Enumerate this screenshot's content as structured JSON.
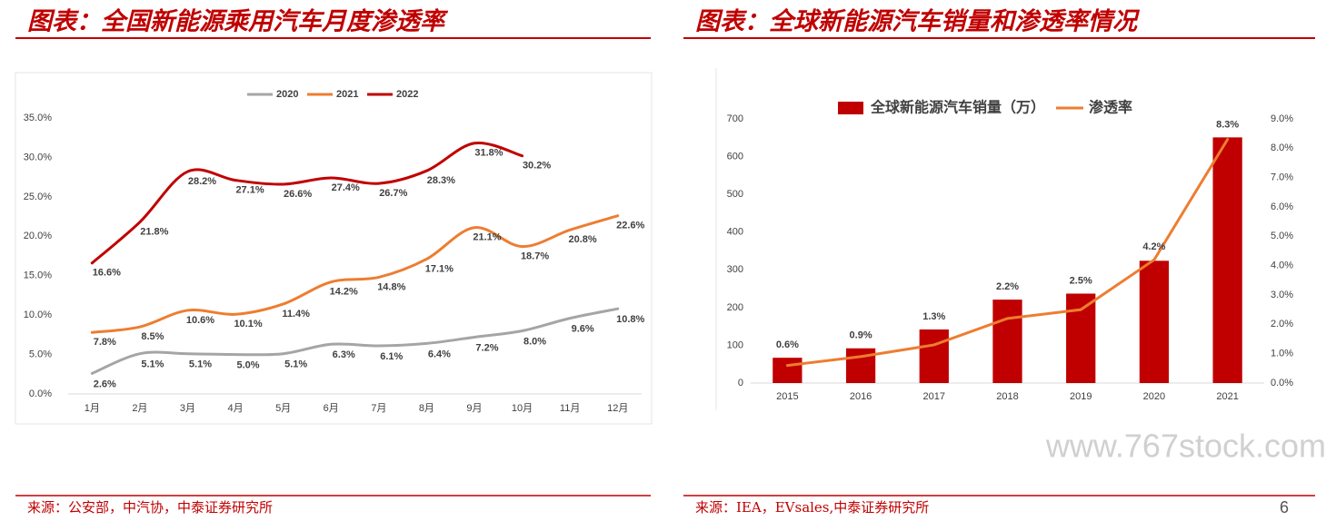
{
  "chart_data": [
    {
      "type": "line",
      "title": "图表：全国新能源乘用汽车月度渗透率",
      "source": "来源：公安部，中汽协，中泰证券研究所",
      "categories": [
        "1月",
        "2月",
        "3月",
        "4月",
        "5月",
        "6月",
        "7月",
        "8月",
        "9月",
        "10月",
        "11月",
        "12月"
      ],
      "series": [
        {
          "name": "2020",
          "color": "#a5a5a5",
          "values": [
            2.6,
            5.1,
            5.1,
            5.0,
            5.1,
            6.3,
            6.1,
            6.4,
            7.2,
            8.0,
            9.6,
            10.8
          ],
          "value_labels": [
            "2.6%",
            "5.1%",
            "5.1%",
            "5.0%",
            "5.1%",
            "6.3%",
            "6.1%",
            "6.4%",
            "7.2%",
            "8.0%",
            "9.6%",
            "10.8%"
          ]
        },
        {
          "name": "2021",
          "color": "#ed7d31",
          "values": [
            7.8,
            8.5,
            10.6,
            10.1,
            11.4,
            14.2,
            14.8,
            17.1,
            21.1,
            18.7,
            20.8,
            22.6
          ],
          "value_labels": [
            "7.8%",
            "8.5%",
            "10.6%",
            "10.1%",
            "11.4%",
            "14.2%",
            "14.8%",
            "17.1%",
            "21.1%",
            "18.7%",
            "20.8%",
            "22.6%"
          ]
        },
        {
          "name": "2022",
          "color": "#c00000",
          "values": [
            16.6,
            21.8,
            28.2,
            27.1,
            26.6,
            27.4,
            26.7,
            28.3,
            31.8,
            30.2,
            null,
            null
          ],
          "value_labels": [
            "16.6%",
            "21.8%",
            "28.2%",
            "27.1%",
            "26.6%",
            "27.4%",
            "26.7%",
            "28.3%",
            "31.8%",
            "30.2%",
            null,
            null
          ]
        }
      ],
      "ylim": [
        0,
        35
      ],
      "yticks": [
        {
          "value": 0,
          "label": "0.0%"
        },
        {
          "value": 5,
          "label": "5.0%"
        },
        {
          "value": 10,
          "label": "10.0%"
        },
        {
          "value": 15,
          "label": "15.0%"
        },
        {
          "value": 20,
          "label": "20.0%"
        },
        {
          "value": 25,
          "label": "25.0%"
        },
        {
          "value": 30,
          "label": "30.0%"
        },
        {
          "value": 35,
          "label": "35.0%"
        }
      ],
      "legend": "top"
    },
    {
      "type": "bar",
      "title": "图表：全球新能源汽车销量和渗透率情况",
      "source": "来源：IEA，EVsales,中泰证券研究所",
      "categories": [
        "2015",
        "2016",
        "2017",
        "2018",
        "2019",
        "2020",
        "2021"
      ],
      "series": [
        {
          "name": "全球新能源汽车销量（万）",
          "type": "bar",
          "color": "#c00000",
          "values": [
            67,
            92,
            142,
            221,
            237,
            324,
            651
          ]
        },
        {
          "name": "渗透率",
          "type": "line",
          "axis": "y2",
          "color": "#ed7d31",
          "values": [
            0.6,
            0.9,
            1.3,
            2.2,
            2.5,
            4.2,
            8.3
          ],
          "value_labels": [
            "0.6%",
            "0.9%",
            "1.3%",
            "2.2%",
            "2.5%",
            "4.2%",
            "8.3%"
          ]
        }
      ],
      "ylim": [
        0,
        700
      ],
      "yticks": [
        0,
        100,
        200,
        300,
        400,
        500,
        600,
        700
      ],
      "y2lim": [
        0,
        9
      ],
      "y2ticks": [
        {
          "value": 0,
          "label": "0.0%"
        },
        {
          "value": 1,
          "label": "1.0%"
        },
        {
          "value": 2,
          "label": "2.0%"
        },
        {
          "value": 3,
          "label": "3.0%"
        },
        {
          "value": 4,
          "label": "4.0%"
        },
        {
          "value": 5,
          "label": "5.0%"
        },
        {
          "value": 6,
          "label": "6.0%"
        },
        {
          "value": 7,
          "label": "7.0%"
        },
        {
          "value": 8,
          "label": "8.0%"
        },
        {
          "value": 9,
          "label": "9.0%"
        }
      ],
      "legend": "top"
    }
  ],
  "page_number": "6",
  "watermark": "www.767stock.com"
}
